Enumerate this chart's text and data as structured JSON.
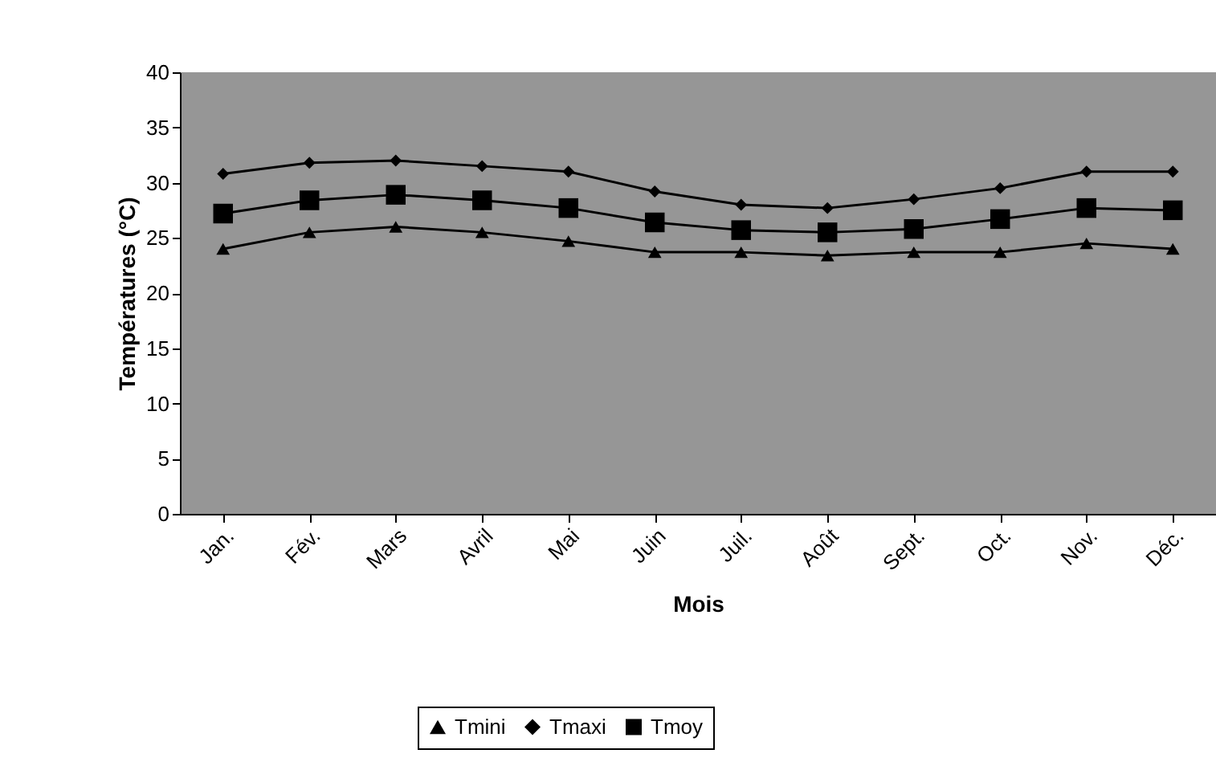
{
  "chart_data": {
    "type": "line",
    "xlabel": "Mois",
    "ylabel": "Températures (°C)",
    "categories": [
      "Jan.",
      "Fév.",
      "Mars",
      "Avril",
      "Mai",
      "Juin",
      "Juil.",
      "Août",
      "Sept.",
      "Oct.",
      "Nov.",
      "Déc."
    ],
    "series": [
      {
        "name": "Tmini",
        "color": "#000000",
        "marker": "triangle",
        "values": [
          24,
          25.5,
          26,
          25.5,
          24.7,
          23.7,
          23.7,
          23.4,
          23.7,
          23.7,
          24.5,
          24
        ]
      },
      {
        "name": "Tmaxi",
        "color": "#000000",
        "marker": "diamond",
        "values": [
          30.8,
          31.8,
          32,
          31.5,
          31,
          29.2,
          28,
          27.7,
          28.5,
          29.5,
          31,
          31
        ]
      },
      {
        "name": "Tmoy",
        "color": "#000000",
        "marker": "square",
        "values": [
          27.2,
          28.4,
          28.9,
          28.4,
          27.7,
          26.4,
          25.7,
          25.5,
          25.8,
          26.7,
          27.7,
          27.5
        ]
      }
    ],
    "ylim": [
      0,
      40
    ],
    "yticks": [
      0,
      5,
      10,
      15,
      20,
      25,
      30,
      35,
      40
    ],
    "grid": false,
    "legend": "bottom"
  }
}
